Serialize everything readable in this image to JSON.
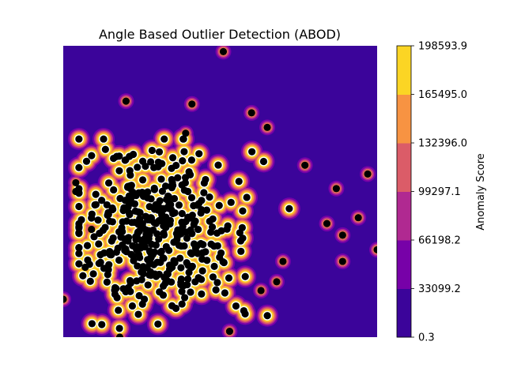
{
  "chart_data": {
    "type": "contour-scatter",
    "title": "Angle Based Outlier Detection (ABOD)",
    "xlabel": "",
    "ylabel": "",
    "axes_visible": false,
    "colorbar": {
      "label": "Anomaly Score",
      "ticks": [
        "0.3",
        "33099.2",
        "66198.2",
        "99297.1",
        "132396.0",
        "165495.0",
        "198593.9"
      ],
      "levels": [
        0.3,
        33099.2,
        66198.2,
        99297.1,
        132396.0,
        165495.0,
        198593.9
      ],
      "colors": [
        "#3b049a",
        "#7701a8",
        "#b02991",
        "#db5c68",
        "#f79342",
        "#fbd524"
      ]
    },
    "background_color": "#3b049a",
    "marker_color": "#000000",
    "dense_region_color": "#ffffff",
    "outlier_points": [
      {
        "x": 0.51,
        "y": 0.02
      },
      {
        "x": 0.2,
        "y": 0.19
      },
      {
        "x": 0.41,
        "y": 0.2
      },
      {
        "x": 0.6,
        "y": 0.23
      },
      {
        "x": 0.65,
        "y": 0.28
      },
      {
        "x": 0.39,
        "y": 0.3
      },
      {
        "x": 0.77,
        "y": 0.41
      },
      {
        "x": 0.97,
        "y": 0.44
      },
      {
        "x": 0.87,
        "y": 0.49
      },
      {
        "x": 0.04,
        "y": 0.47
      },
      {
        "x": 0.04,
        "y": 0.5
      },
      {
        "x": 0.94,
        "y": 0.59
      },
      {
        "x": 0.84,
        "y": 0.61
      },
      {
        "x": 0.89,
        "y": 0.65
      },
      {
        "x": 1.0,
        "y": 0.7
      },
      {
        "x": 0.89,
        "y": 0.74
      },
      {
        "x": 0.7,
        "y": 0.74
      },
      {
        "x": 0.68,
        "y": 0.81
      },
      {
        "x": 0.63,
        "y": 0.84
      },
      {
        "x": 0.0,
        "y": 0.87
      },
      {
        "x": 0.53,
        "y": 0.98
      },
      {
        "x": 0.18,
        "y": 1.0
      },
      {
        "x": 0.09,
        "y": 0.63
      },
      {
        "x": 0.07,
        "y": 0.76
      }
    ],
    "cluster": {
      "center_x": 0.26,
      "center_y": 0.66,
      "count": 430
    }
  }
}
